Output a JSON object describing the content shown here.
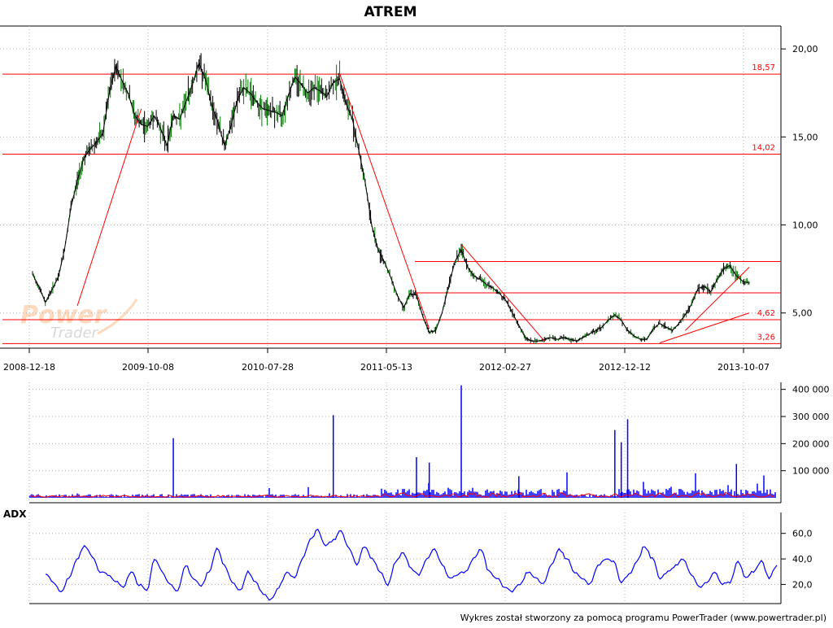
{
  "title": "ATREM",
  "footer": "Wykres został stworzony za pomocą programu PowerTrader (www.powertrader.pl)",
  "watermark": {
    "line1": "Power",
    "line2": "Trader"
  },
  "colors": {
    "price": "#000000",
    "price_up": "#008000",
    "level_line": "#ff0000",
    "trend_line": "#ff0000",
    "volume": "#0000ff",
    "volume_avg": "#ff0000",
    "adx": "#0000ff",
    "grid": "#b0b0b0"
  },
  "chart_data": [
    {
      "type": "line",
      "name": "price",
      "title": "ATREM",
      "x_tick_labels": [
        "2008-12-18",
        "2009-10-08",
        "2010-07-28",
        "2011-05-13",
        "2012-02-27",
        "2012-12-12",
        "2013-10-07"
      ],
      "y_tick_labels": [
        "20,00",
        "15,00",
        "10,00",
        "5,00"
      ],
      "y_ticks": [
        20,
        15,
        10,
        5
      ],
      "ylim": [
        3.0,
        21.3
      ],
      "grid": true,
      "series": [
        {
          "values": [
            7.2,
            6.5,
            5.6,
            6.3,
            7.0,
            8.6,
            11.0,
            12.5,
            13.8,
            14.3,
            14.7,
            15.2,
            17.5,
            19.0,
            18.2,
            17.4,
            16.2,
            15.7,
            15.6,
            16.2,
            15.5,
            14.5,
            16.2,
            16.0,
            17.0,
            18.0,
            19.2,
            18.3,
            16.8,
            15.8,
            14.5,
            15.6,
            17.1,
            17.8,
            17.5,
            17.0,
            16.6,
            16.5,
            16.4,
            16.2,
            17.4,
            18.4,
            18.0,
            17.5,
            17.8,
            17.6,
            17.3,
            18.1,
            18.3,
            16.9,
            16.0,
            14.2,
            12.4,
            10.0,
            8.6,
            7.9,
            7.0,
            6.0,
            5.3,
            6.1,
            6.0,
            4.8,
            3.9,
            4.0,
            5.0,
            6.5,
            7.9,
            8.6,
            7.6,
            7.1,
            6.9,
            6.6,
            6.4,
            6.1,
            5.7,
            5.0,
            4.3,
            3.6,
            3.4,
            3.4,
            3.5,
            3.6,
            3.5,
            3.6,
            3.5,
            3.4,
            3.6,
            3.8,
            4.0,
            4.2,
            4.6,
            4.9,
            4.6,
            4.0,
            3.7,
            3.5,
            3.5,
            4.1,
            4.4,
            4.2,
            4.0,
            4.4,
            4.9,
            5.5,
            6.4,
            6.5,
            6.2,
            6.9,
            7.5,
            7.7,
            7.1,
            6.8,
            6.7
          ]
        }
      ],
      "levels": [
        {
          "value": 18.57,
          "label": "18,57"
        },
        {
          "value": 14.02,
          "label": "14,02"
        },
        {
          "value": 4.62,
          "label": "4,62"
        },
        {
          "value": 3.26,
          "label": "3,26"
        }
      ],
      "extra_lines": [
        7.92,
        6.14
      ],
      "trend_lines": [
        {
          "from": [
            7,
            5.4
          ],
          "to": [
            17,
            16.6
          ]
        },
        {
          "from": [
            48,
            18.6
          ],
          "to": [
            62,
            4.1
          ]
        },
        {
          "from": [
            67,
            8.9
          ],
          "to": [
            80,
            3.4
          ]
        },
        {
          "from": [
            98,
            3.3
          ],
          "to": [
            112,
            5.0
          ]
        },
        {
          "from": [
            102,
            4.0
          ],
          "to": [
            112,
            7.6
          ]
        }
      ]
    },
    {
      "type": "bar",
      "name": "volume",
      "y_tick_labels": [
        "400 000",
        "300 000",
        "200 000",
        "100 000"
      ],
      "y_ticks": [
        400000,
        300000,
        200000,
        100000
      ],
      "ylim": [
        0,
        420000
      ],
      "spikes": [
        {
          "x": 22,
          "value": 220000
        },
        {
          "x": 47,
          "value": 305000
        },
        {
          "x": 67,
          "value": 415000
        },
        {
          "x": 76,
          "value": 80000
        },
        {
          "x": 91,
          "value": 250000
        },
        {
          "x": 92,
          "value": 205000
        },
        {
          "x": 93,
          "value": 290000
        },
        {
          "x": 60,
          "value": 150000
        },
        {
          "x": 62,
          "value": 130000
        },
        {
          "x": 110,
          "value": 125000
        }
      ]
    },
    {
      "type": "line",
      "name": "adx",
      "title": "ADX",
      "y_tick_labels": [
        "60,0",
        "40,0",
        "20,0"
      ],
      "y_ticks": [
        60,
        40,
        20
      ],
      "ylim": [
        5,
        70
      ],
      "series": [
        {
          "values": [
            28,
            22,
            14,
            25,
            40,
            50,
            42,
            30,
            28,
            22,
            18,
            30,
            20,
            15,
            40,
            30,
            20,
            15,
            35,
            25,
            18,
            30,
            48,
            35,
            22,
            15,
            30,
            22,
            12,
            8,
            18,
            30,
            25,
            40,
            55,
            63,
            50,
            55,
            62,
            48,
            35,
            50,
            40,
            30,
            20,
            38,
            45,
            32,
            28,
            40,
            48,
            35,
            25,
            28,
            30,
            40,
            48,
            30,
            25,
            18,
            15,
            20,
            30,
            25,
            20,
            35,
            48,
            40,
            30,
            25,
            20,
            35,
            40,
            38,
            22,
            28,
            38,
            50,
            40,
            25,
            30,
            35,
            40,
            28,
            18,
            22,
            30,
            20,
            22,
            38,
            25,
            30,
            38,
            25,
            35
          ]
        }
      ]
    }
  ]
}
